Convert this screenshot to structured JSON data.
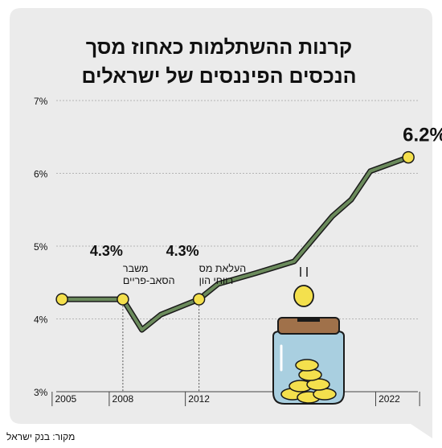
{
  "title_lines": [
    "קרנות ההשתלמות כאחוז מסך",
    "הנכסים הפיננסים של ישראלים"
  ],
  "source": "מקור: בנק ישראל",
  "colors": {
    "background": "#ebebeb",
    "line": "#6b8b5c",
    "line_outline": "#1a1a1a",
    "marker": "#f4e04d",
    "grid": "#b5b5b5",
    "jar_glass": "#a9cfe0",
    "jar_lid": "#a0714a",
    "coin": "#f4e04d"
  },
  "chart_data": {
    "type": "line",
    "ylim": [
      3,
      7
    ],
    "xlim": [
      2004.5,
      2023.5
    ],
    "y_ticks": [
      {
        "value": 7,
        "label": "7%"
      },
      {
        "value": 6,
        "label": "6%"
      },
      {
        "value": 5,
        "label": "5%"
      },
      {
        "value": 4,
        "label": "4%"
      },
      {
        "value": 3,
        "label": "3%"
      }
    ],
    "x_ticks": [
      {
        "value": 2005,
        "label": "2005"
      },
      {
        "value": 2008,
        "label": "2008"
      },
      {
        "value": 2012,
        "label": "2012"
      },
      {
        "value": 2022,
        "label": "2022"
      }
    ],
    "series": [
      {
        "x": [
          2004.8,
          2008,
          2009,
          2010,
          2012,
          2013,
          2015,
          2017,
          2019,
          2020,
          2021,
          2023
        ],
        "y": [
          4.27,
          4.27,
          3.85,
          4.06,
          4.27,
          4.48,
          4.63,
          4.79,
          5.41,
          5.64,
          6.03,
          6.22
        ]
      }
    ],
    "markers": [
      {
        "x": 2004.8,
        "y": 4.27
      },
      {
        "x": 2008,
        "y": 4.27
      },
      {
        "x": 2012,
        "y": 4.27
      },
      {
        "x": 2023,
        "y": 6.22
      }
    ],
    "annotations": [
      {
        "value": "4.3%",
        "lines": [
          "משבר",
          "הסאב-פריים"
        ],
        "x": 2008
      },
      {
        "value": "4.3%",
        "lines": [
          "העלאת מס",
          "רווחי הון"
        ],
        "x": 2012
      },
      {
        "value": "6.2%",
        "lines": [],
        "x": 2023
      }
    ]
  }
}
